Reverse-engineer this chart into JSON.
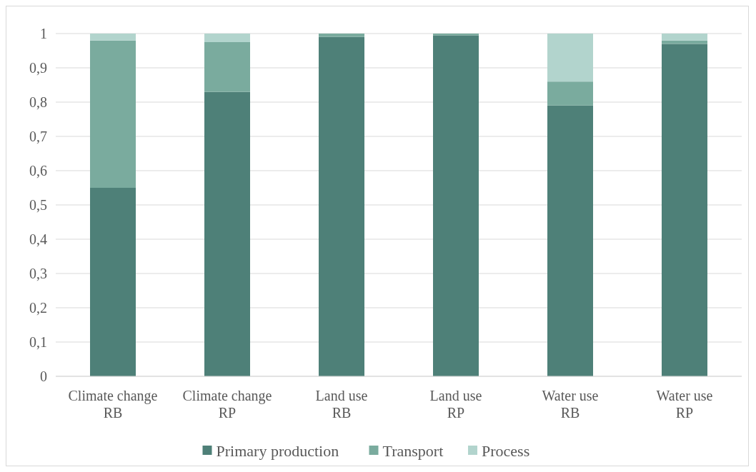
{
  "chart_data": {
    "type": "bar",
    "stacked": true,
    "categories": [
      "Climate change\nRB",
      "Climate change\nRP",
      "Land use\nRB",
      "Land use\nRP",
      "Water use\nRB",
      "Water use\nRP"
    ],
    "series": [
      {
        "name": "Primary production",
        "color": "#4e8078",
        "values": [
          0.55,
          0.83,
          0.99,
          0.995,
          0.79,
          0.97
        ]
      },
      {
        "name": "Transport",
        "color": "#7aab9e",
        "values": [
          0.43,
          0.145,
          0.01,
          0.005,
          0.07,
          0.01
        ]
      },
      {
        "name": "Process",
        "color": "#b2d4cd",
        "values": [
          0.02,
          0.025,
          0,
          0,
          0.14,
          0.02
        ]
      }
    ],
    "ylim": [
      0,
      1
    ],
    "yticks": [
      {
        "value": 0,
        "label": "0"
      },
      {
        "value": 0.1,
        "label": "0,1"
      },
      {
        "value": 0.2,
        "label": "0,2"
      },
      {
        "value": 0.3,
        "label": "0,3"
      },
      {
        "value": 0.4,
        "label": "0,4"
      },
      {
        "value": 0.5,
        "label": "0,5"
      },
      {
        "value": 0.6,
        "label": "0,6"
      },
      {
        "value": 0.7,
        "label": "0,7"
      },
      {
        "value": 0.8,
        "label": "0,8"
      },
      {
        "value": 0.9,
        "label": "0,9"
      },
      {
        "value": 1,
        "label": "1"
      }
    ],
    "grid": "y",
    "legend": "bottom"
  }
}
